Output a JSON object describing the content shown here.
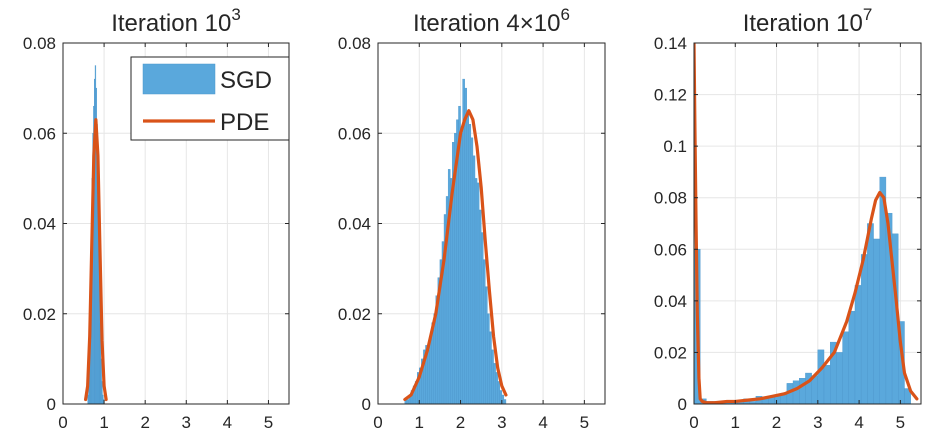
{
  "colors": {
    "bar": "#5aa8dc",
    "bar_edge": "#4c97cc",
    "line": "#d95319",
    "axis": "#262626",
    "grid": "#e6e6e6"
  },
  "chart_data": [
    {
      "type": "bar",
      "title_main": "Iteration 10",
      "title_sup": "3",
      "xlim": [
        0,
        5.5
      ],
      "ylim": [
        0,
        0.08
      ],
      "grid": true,
      "xticks": [
        "0",
        "1",
        "2",
        "3",
        "4",
        "5"
      ],
      "yticks": [
        "0",
        "0.02",
        "0.04",
        "0.06",
        "0.08"
      ],
      "legend": {
        "position": "top-right",
        "entries": [
          "SGD",
          "PDE"
        ]
      },
      "series": [
        {
          "name": "SGD",
          "type": "histogram",
          "bin_width": 0.02,
          "x": [
            0.6,
            0.62,
            0.64,
            0.66,
            0.68,
            0.7,
            0.72,
            0.74,
            0.76,
            0.78,
            0.8,
            0.82,
            0.84,
            0.86,
            0.88,
            0.9,
            0.92,
            0.94,
            0.96,
            0.98
          ],
          "values": [
            0.002,
            0.006,
            0.012,
            0.022,
            0.036,
            0.05,
            0.06,
            0.066,
            0.072,
            0.075,
            0.07,
            0.062,
            0.052,
            0.04,
            0.028,
            0.018,
            0.01,
            0.005,
            0.002,
            0.001
          ]
        },
        {
          "name": "PDE",
          "type": "line",
          "x": [
            0.55,
            0.6,
            0.65,
            0.7,
            0.75,
            0.8,
            0.85,
            0.9,
            0.95,
            1.0,
            1.05
          ],
          "values": [
            0.001,
            0.004,
            0.015,
            0.035,
            0.055,
            0.063,
            0.055,
            0.034,
            0.014,
            0.004,
            0.001
          ]
        }
      ]
    },
    {
      "type": "bar",
      "title_main": "Iteration 4×10",
      "title_sup": "6",
      "xlim": [
        0,
        5.5
      ],
      "ylim": [
        0,
        0.08
      ],
      "grid": true,
      "xticks": [
        "0",
        "1",
        "2",
        "3",
        "4",
        "5"
      ],
      "yticks": [
        "0",
        "0.02",
        "0.04",
        "0.06",
        "0.08"
      ],
      "series": [
        {
          "name": "SGD",
          "type": "histogram",
          "bin_width": 0.05,
          "x": [
            0.65,
            0.7,
            0.75,
            0.8,
            0.85,
            0.9,
            0.95,
            1.0,
            1.05,
            1.1,
            1.15,
            1.2,
            1.25,
            1.3,
            1.35,
            1.4,
            1.45,
            1.5,
            1.55,
            1.6,
            1.65,
            1.7,
            1.75,
            1.8,
            1.85,
            1.9,
            1.95,
            2.0,
            2.05,
            2.1,
            2.15,
            2.2,
            2.25,
            2.3,
            2.35,
            2.4,
            2.45,
            2.5,
            2.55,
            2.6,
            2.65,
            2.7,
            2.75,
            2.8,
            2.85,
            2.9,
            2.95,
            3.0,
            3.05
          ],
          "values": [
            0.001,
            0.001,
            0.002,
            0.003,
            0.004,
            0.005,
            0.007,
            0.008,
            0.01,
            0.012,
            0.013,
            0.012,
            0.015,
            0.018,
            0.02,
            0.024,
            0.028,
            0.032,
            0.036,
            0.042,
            0.046,
            0.052,
            0.05,
            0.058,
            0.06,
            0.063,
            0.066,
            0.06,
            0.072,
            0.07,
            0.065,
            0.062,
            0.059,
            0.055,
            0.05,
            0.049,
            0.043,
            0.038,
            0.032,
            0.026,
            0.02,
            0.016,
            0.012,
            0.009,
            0.007,
            0.005,
            0.003,
            0.002,
            0.001
          ]
        },
        {
          "name": "PDE",
          "type": "line",
          "x": [
            0.65,
            0.8,
            1.0,
            1.2,
            1.4,
            1.6,
            1.8,
            2.0,
            2.1,
            2.2,
            2.3,
            2.4,
            2.5,
            2.6,
            2.7,
            2.8,
            2.9,
            3.0,
            3.1
          ],
          "values": [
            0.001,
            0.002,
            0.006,
            0.012,
            0.02,
            0.032,
            0.047,
            0.06,
            0.063,
            0.065,
            0.063,
            0.057,
            0.048,
            0.036,
            0.025,
            0.015,
            0.008,
            0.004,
            0.002
          ]
        }
      ]
    },
    {
      "type": "bar",
      "title_main": "Iteration 10",
      "title_sup": "7",
      "xlim": [
        0,
        5.5
      ],
      "ylim": [
        0,
        0.14
      ],
      "grid": true,
      "xticks": [
        "0",
        "1",
        "2",
        "3",
        "4",
        "5"
      ],
      "yticks": [
        "0",
        "0.02",
        "0.04",
        "0.06",
        "0.08",
        "0.1",
        "0.12",
        "0.14"
      ],
      "series": [
        {
          "name": "SGD",
          "type": "histogram",
          "bin_width": 0.15,
          "x": [
            0.0,
            0.15,
            0.3,
            0.45,
            0.6,
            0.75,
            0.9,
            1.05,
            1.2,
            1.35,
            1.5,
            1.65,
            1.8,
            1.95,
            2.1,
            2.25,
            2.4,
            2.55,
            2.7,
            2.85,
            3.0,
            3.15,
            3.3,
            3.45,
            3.6,
            3.75,
            3.9,
            4.05,
            4.2,
            4.35,
            4.5,
            4.65,
            4.8,
            4.95,
            5.1
          ],
          "values": [
            0.06,
            0.002,
            0.001,
            0.001,
            0.001,
            0.001,
            0.001,
            0.001,
            0.002,
            0.001,
            0.003,
            0.002,
            0.003,
            0.003,
            0.004,
            0.008,
            0.009,
            0.01,
            0.012,
            0.011,
            0.021,
            0.015,
            0.024,
            0.02,
            0.028,
            0.036,
            0.046,
            0.058,
            0.07,
            0.064,
            0.088,
            0.074,
            0.066,
            0.032,
            0.006
          ]
        },
        {
          "name": "PDE",
          "type": "line",
          "x": [
            0.0,
            0.02,
            0.05,
            0.08,
            0.12,
            0.15,
            0.2,
            0.3,
            0.5,
            0.8,
            1.0,
            1.3,
            1.6,
            1.9,
            2.2,
            2.5,
            2.8,
            3.1,
            3.4,
            3.7,
            3.9,
            4.1,
            4.2,
            4.3,
            4.4,
            4.5,
            4.6,
            4.7,
            4.8,
            4.9,
            5.0,
            5.1,
            5.25,
            5.4
          ],
          "values": [
            0.14,
            0.11,
            0.07,
            0.035,
            0.01,
            0.002,
            0.001,
            0.0005,
            0.0005,
            0.001,
            0.001,
            0.0015,
            0.002,
            0.003,
            0.004,
            0.006,
            0.009,
            0.014,
            0.02,
            0.032,
            0.043,
            0.056,
            0.064,
            0.072,
            0.079,
            0.082,
            0.08,
            0.07,
            0.055,
            0.04,
            0.024,
            0.012,
            0.005,
            0.002
          ]
        }
      ]
    }
  ]
}
